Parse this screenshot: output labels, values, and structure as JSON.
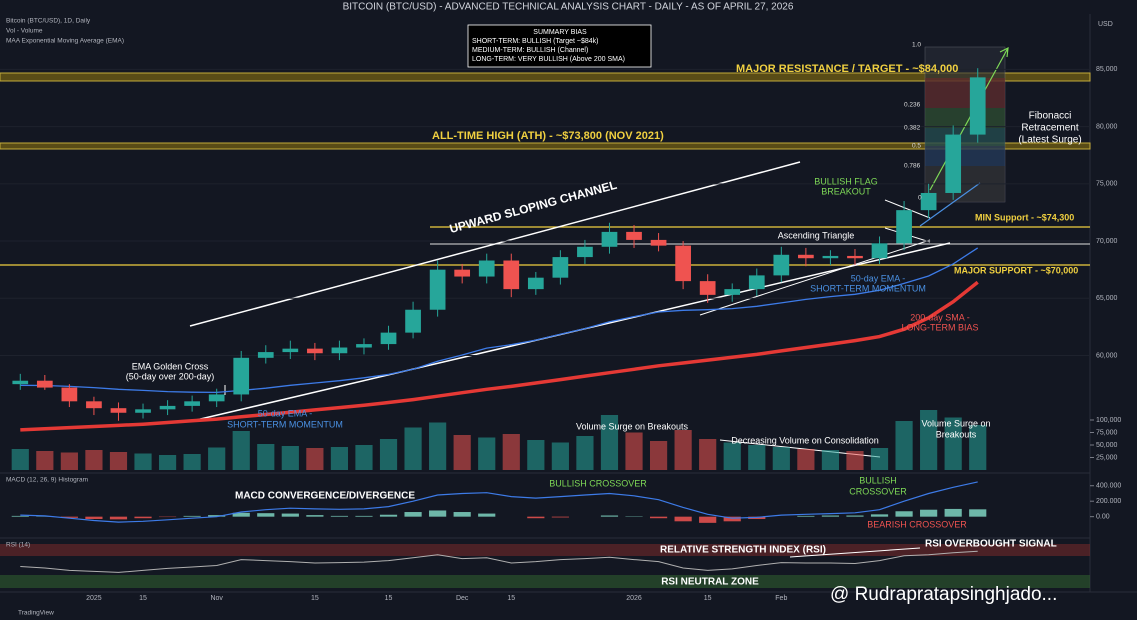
{
  "chart_data": {
    "type": "candlestick",
    "title": "BITCOIN (BTC/USD) - ADVANCED TECHNICAL ANALYSIS CHART - DAILY - AS OF APRIL 27, 2026",
    "currency": "USD",
    "legend_lines": [
      "Bitcoin (BTC/USD), 1D, Daily",
      "Vol - Volume",
      "MAA Exponential Moving Average (EMA)"
    ],
    "categories": [
      null,
      null,
      null,
      "2025",
      null,
      "15",
      null,
      null,
      "Nov",
      null,
      null,
      null,
      "15",
      null,
      null,
      "15",
      null,
      null,
      "Dec",
      null,
      "15",
      null,
      null,
      null,
      null,
      "2026",
      null,
      null,
      "15",
      null,
      null,
      "Feb",
      null,
      null,
      null,
      null,
      null,
      null,
      null,
      null
    ],
    "open": [
      57500,
      57800,
      57200,
      56000,
      55400,
      55000,
      55300,
      55600,
      56000,
      56600,
      59800,
      60300,
      60600,
      60200,
      60700,
      61000,
      62000,
      64000,
      67500,
      66900,
      68300,
      65800,
      66800,
      68600,
      69500,
      70800,
      70100,
      69600,
      66500,
      65300,
      65800,
      67000,
      68800,
      68500,
      68700,
      68500,
      69800,
      72700,
      74200,
      79300
    ],
    "high": [
      58400,
      58300,
      57500,
      56400,
      55900,
      55800,
      56100,
      56500,
      57100,
      60400,
      60900,
      61300,
      61100,
      61300,
      61500,
      62600,
      64700,
      68300,
      68000,
      68900,
      68900,
      67300,
      69200,
      70100,
      71600,
      71400,
      70700,
      70000,
      67100,
      66300,
      67600,
      69500,
      69400,
      69200,
      69300,
      70400,
      73500,
      75000,
      80100,
      85100
    ],
    "low": [
      57000,
      57000,
      55500,
      54800,
      54300,
      54500,
      54800,
      55100,
      55500,
      56000,
      59300,
      59700,
      59600,
      59600,
      60100,
      60500,
      61500,
      63400,
      66300,
      66300,
      65100,
      65300,
      66200,
      68000,
      68900,
      69400,
      69100,
      65800,
      64600,
      64700,
      65200,
      66400,
      67800,
      67900,
      67900,
      68000,
      69200,
      72000,
      73600,
      78600
    ],
    "close": [
      57800,
      57200,
      56000,
      55400,
      55000,
      55300,
      55600,
      56000,
      56600,
      59800,
      60300,
      60600,
      60200,
      60700,
      61000,
      62000,
      64000,
      67500,
      66900,
      68300,
      65800,
      66800,
      68600,
      69500,
      70800,
      70100,
      69600,
      66500,
      65300,
      65800,
      67000,
      68800,
      68500,
      68700,
      68500,
      69800,
      72700,
      74200,
      79300,
      84300
    ],
    "up_color": "#26a69a",
    "down_color": "#ef5350",
    "ylim": [
      50000,
      88000
    ],
    "yticks": [
      {
        "value": 60000,
        "label": "60,000"
      },
      {
        "value": 65000,
        "label": "65,000"
      },
      {
        "value": 70000,
        "label": "70,000"
      },
      {
        "value": 75000,
        "label": "75,000"
      },
      {
        "value": 80000,
        "label": "80,000"
      },
      {
        "value": 85000,
        "label": "85,000"
      }
    ],
    "lines": [
      {
        "name": "50-day EMA",
        "color": "#3d7be8",
        "width": 1.3,
        "values": [
          57400,
          57380,
          57300,
          57200,
          57050,
          56950,
          56850,
          56800,
          56780,
          56950,
          57150,
          57400,
          57600,
          57800,
          58050,
          58350,
          58800,
          59500,
          60050,
          60650,
          60950,
          61350,
          61850,
          62350,
          62950,
          63400,
          63800,
          63950,
          64000,
          64100,
          64300,
          64600,
          64900,
          65150,
          65350,
          65700,
          66300,
          66950,
          68000,
          69400
        ]
      },
      {
        "name": "200-day SMA",
        "color": "#e53935",
        "width": 3.5,
        "values": [
          53500,
          53600,
          53700,
          53800,
          53900,
          54000,
          54150,
          54300,
          54450,
          54650,
          54850,
          55050,
          55250,
          55450,
          55650,
          55900,
          56150,
          56450,
          56750,
          57050,
          57300,
          57600,
          57900,
          58200,
          58500,
          58800,
          59100,
          59350,
          59600,
          59850,
          60100,
          60400,
          60700,
          61000,
          61300,
          61650,
          62300,
          63300,
          64700,
          66400
        ]
      }
    ],
    "volume": [
      42000,
      38000,
      35000,
      40000,
      36000,
      33000,
      30000,
      32000,
      45000,
      78000,
      52000,
      48000,
      44000,
      46000,
      50000,
      62000,
      85000,
      95000,
      70000,
      65000,
      72000,
      60000,
      55000,
      68000,
      110000,
      75000,
      58000,
      80000,
      62000,
      55000,
      50000,
      46000,
      42000,
      40000,
      38000,
      44000,
      98000,
      120000,
      105000,
      90000
    ],
    "volume_lim": [
      0,
      130000
    ],
    "volume_ticks": [
      {
        "value": 25000,
        "label": "25,000"
      },
      {
        "value": 50000,
        "label": "50,000"
      },
      {
        "value": 75000,
        "label": "75,000"
      },
      {
        "value": 100000,
        "label": "100,000"
      }
    ],
    "macd_label": "MACD (12, 26, 9) Histogram",
    "macd": [
      20000,
      10000,
      -20000,
      -50000,
      -70000,
      -60000,
      -40000,
      -20000,
      0,
      60000,
      90000,
      110000,
      100000,
      95000,
      100000,
      130000,
      200000,
      280000,
      300000,
      310000,
      260000,
      240000,
      260000,
      280000,
      300000,
      270000,
      220000,
      120000,
      30000,
      -20000,
      -10000,
      20000,
      30000,
      40000,
      50000,
      90000,
      200000,
      300000,
      380000,
      450000
    ],
    "macd_histogram": [
      10000,
      5000,
      -15000,
      -30000,
      -35000,
      -20000,
      -5000,
      10000,
      20000,
      50000,
      45000,
      40000,
      20000,
      10000,
      10000,
      25000,
      60000,
      80000,
      60000,
      40000,
      0,
      -20000,
      -10000,
      0,
      15000,
      5000,
      -20000,
      -60000,
      -80000,
      -60000,
      -30000,
      0,
      10000,
      15000,
      15000,
      30000,
      70000,
      90000,
      100000,
      95000
    ],
    "macd_color": "#3d7be8",
    "macd_lim": [
      -250000,
      500000
    ],
    "macd_ticks": [
      {
        "value": 0,
        "label": "0.00"
      },
      {
        "value": 200000,
        "label": "200.000"
      },
      {
        "value": 400000,
        "label": "400.000"
      }
    ],
    "rsi_label": "RSI (14)",
    "rsi": [
      48,
      45,
      40,
      38,
      36,
      40,
      44,
      47,
      50,
      62,
      60,
      58,
      55,
      56,
      57,
      60,
      66,
      72,
      64,
      66,
      55,
      58,
      62,
      64,
      67,
      62,
      58,
      45,
      40,
      43,
      50,
      56,
      55,
      55,
      54,
      60,
      70,
      72,
      76,
      79
    ],
    "rsi_color": "#b0b0b0",
    "rsi_lim": [
      0,
      100
    ],
    "summary": {
      "title": "SUMMARY BIAS",
      "lines": [
        "SHORT-TERM: BULLISH (Target ~$84k)",
        "MEDIUM-TERM: BULLISH (Channel)",
        "LONG-TERM: VERY BULLISH (Above 200 SMA)"
      ]
    },
    "annotations": {
      "resistance": "MAJOR RESISTANCE / TARGET - ~$84,000",
      "ath": "ALL-TIME HIGH (ATH) - ~$73,800 (NOV 2021)",
      "channel": "UPWARD SLOPING CHANNEL",
      "flag": [
        "BULLISH FLAG",
        "BREAKOUT"
      ],
      "triangle": "Ascending Triangle",
      "min_support": "MIN Support - ~$74,300",
      "major_support": "MAJOR SUPPORT - ~$70,000",
      "ema_right": [
        "50-day EMA -",
        "SHORT-TERM MOMENTUM"
      ],
      "ema_left": [
        "50-day EMA -",
        "SHORT-TERM MOMENTUM"
      ],
      "sma": [
        "200-day SMA -",
        "LONG-TERM BIAS"
      ],
      "golden_cross": [
        "EMA Golden Cross",
        "(50-day over 200-day)"
      ],
      "fibonacci": [
        "Fibonacci",
        "Retracement",
        "(Latest Surge)"
      ],
      "fib_levels": [
        "1.0",
        "0.236",
        "0.382",
        "0.5",
        "0.786",
        "0"
      ],
      "volume_surge": "Volume Surge on Breakouts",
      "volume_surge_right": [
        "Volume Surge on",
        "Breakouts"
      ],
      "volume_decrease": "Decreasing Volume on Consolidation",
      "macd_title": "MACD CONVERGENCE/DIVERGENCE",
      "bullish_cross": "BULLISH CROSSOVER",
      "bullish_cross_right": [
        "BULLISH",
        "CROSSOVER"
      ],
      "bearish_cross": "BEARISH CROSSOVER",
      "rsi_title": "RELATIVE STRENGTH INDEX (RSI)",
      "rsi_overbought": "RSI OVERBOUGHT SIGNAL",
      "rsi_neutral": "RSI NEUTRAL ZONE",
      "brand": "TradingView",
      "watermark": "@ Rudrapratapsinghjado..."
    }
  }
}
